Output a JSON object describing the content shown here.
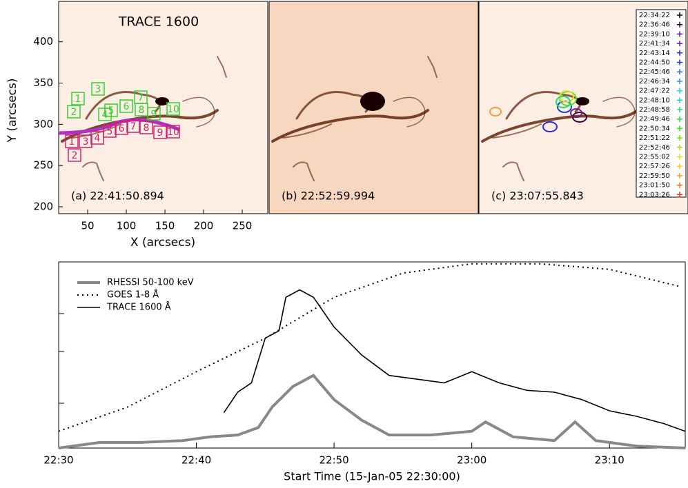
{
  "panels": {
    "x_label": "X (arcsecs)",
    "y_label": "Y (arcsecs)",
    "xlim": [
      12.5,
      283
    ],
    "ylim": [
      191.7,
      449
    ],
    "xticks": [
      50,
      100,
      150,
      200,
      250
    ],
    "yticks": [
      200,
      250,
      300,
      350,
      400
    ],
    "title": "TRACE 1600",
    "labels": [
      "(a) 22:41:50.894",
      "(b) 22:52:59.994",
      "(c) 23:07:55.843"
    ],
    "green_boxes": [
      "1",
      "2",
      "3",
      "4",
      "5",
      "6",
      "7",
      "8",
      "9",
      "10"
    ],
    "red_boxes": [
      "1",
      "2",
      "3",
      "4",
      "5",
      "6",
      "7",
      "8",
      "9",
      "10"
    ],
    "legend": [
      {
        "name": "22:34:22",
        "color": "#000000"
      },
      {
        "name": "22:36:46",
        "color": "#3a0030"
      },
      {
        "name": "22:39:10",
        "color": "#6a1a8a"
      },
      {
        "name": "22:41:34",
        "color": "#5a1ab0"
      },
      {
        "name": "22:43:14",
        "color": "#2a2ad0"
      },
      {
        "name": "22:44:50",
        "color": "#1a3ae0"
      },
      {
        "name": "22:45:46",
        "color": "#1a6ae0"
      },
      {
        "name": "22:46:34",
        "color": "#1a9ae0"
      },
      {
        "name": "22:47:22",
        "color": "#1ad0e0"
      },
      {
        "name": "22:48:10",
        "color": "#1ae0b0"
      },
      {
        "name": "22:48:58",
        "color": "#1ae070"
      },
      {
        "name": "22:49:46",
        "color": "#1ae040"
      },
      {
        "name": "22:50:34",
        "color": "#30e01a"
      },
      {
        "name": "22:51:22",
        "color": "#70e01a"
      },
      {
        "name": "22:52:46",
        "color": "#b0e01a"
      },
      {
        "name": "22:55:02",
        "color": "#e0e01a"
      },
      {
        "name": "22:57:26",
        "color": "#f8c820"
      },
      {
        "name": "22:59:50",
        "color": "#f89820"
      },
      {
        "name": "23:01:50",
        "color": "#f87020"
      },
      {
        "name": "23:03:26",
        "color": "#f03010"
      }
    ]
  },
  "chart_data": {
    "type": "line",
    "x_label": "Start Time (15-Jan-05 22:30:00)",
    "xlim": [
      0,
      45.5
    ],
    "ylim": [
      0,
      1
    ],
    "xticks": [
      {
        "value": 0,
        "label": "22:30"
      },
      {
        "value": 10,
        "label": "22:40"
      },
      {
        "value": 20,
        "label": "22:50"
      },
      {
        "value": 30,
        "label": "23:00"
      },
      {
        "value": 40,
        "label": "23:10"
      }
    ],
    "series": [
      {
        "name": "RHESSI 50-100 keV",
        "color": "#888888",
        "style": "thick",
        "x": [
          0,
          3,
          6,
          9,
          11,
          13,
          14.5,
          15.5,
          17,
          18.5,
          20,
          22,
          24,
          27,
          30,
          31,
          33,
          36,
          37.5,
          39,
          42,
          45.5
        ],
        "values": [
          0,
          0.03,
          0.03,
          0.04,
          0.06,
          0.07,
          0.11,
          0.22,
          0.33,
          0.39,
          0.26,
          0.15,
          0.07,
          0.07,
          0.09,
          0.14,
          0.06,
          0.04,
          0.14,
          0.04,
          0.01,
          0
        ]
      },
      {
        "name": "GOES 1-8 Å",
        "color": "#000000",
        "style": "dotted",
        "x": [
          0,
          5,
          10,
          15,
          20,
          25,
          30,
          35,
          40,
          45
        ],
        "values": [
          0.09,
          0.22,
          0.41,
          0.59,
          0.81,
          0.94,
          0.99,
          0.99,
          0.96,
          0.87
        ]
      },
      {
        "name": "TRACE 1600 Å",
        "color": "#000000",
        "style": "solid",
        "x": [
          12,
          13,
          14,
          15,
          16,
          16.5,
          17.5,
          18.5,
          20,
          22,
          24,
          26,
          28,
          30,
          32,
          34,
          36,
          38,
          40,
          42,
          44,
          45.5
        ],
        "values": [
          0.19,
          0.3,
          0.35,
          0.59,
          0.63,
          0.81,
          0.85,
          0.81,
          0.65,
          0.5,
          0.39,
          0.37,
          0.35,
          0.41,
          0.35,
          0.31,
          0.3,
          0.26,
          0.2,
          0.17,
          0.13,
          0.09
        ]
      }
    ]
  }
}
